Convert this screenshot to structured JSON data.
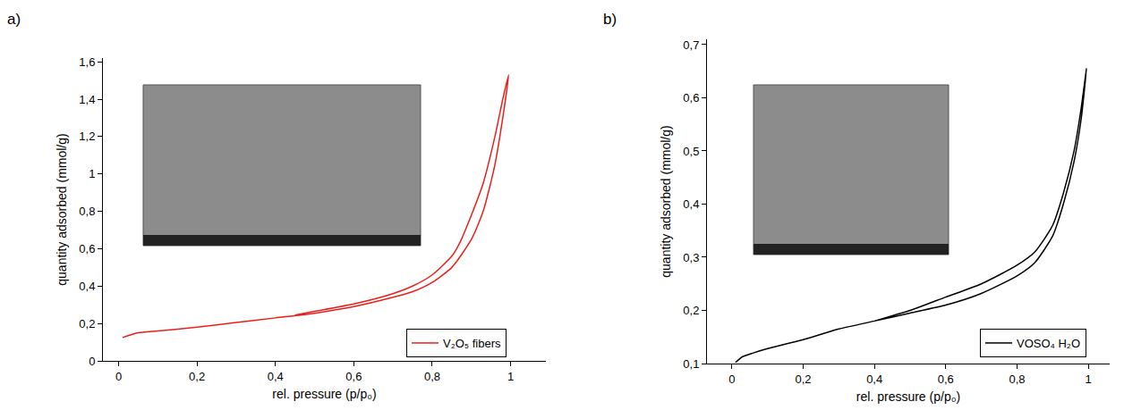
{
  "chart_data": [
    {
      "type": "line",
      "annotation": "a)",
      "x_label": "rel. pressure (p/p₀)",
      "y_label": "quantity adsorbed (mmol/g)",
      "x": [
        0.01,
        0.05,
        0.1,
        0.2,
        0.3,
        0.4,
        0.5,
        0.6,
        0.7,
        0.75,
        0.8,
        0.85,
        0.9,
        0.93,
        0.96,
        0.98,
        0.995,
        0.98,
        0.96,
        0.93,
        0.9,
        0.87,
        0.85,
        0.8,
        0.75,
        0.7,
        0.6,
        0.5,
        0.45
      ],
      "series": [
        {
          "name": "V₂O₅ fibers",
          "color": "#e8201c",
          "values": [
            0.125,
            0.15,
            0.16,
            0.18,
            0.205,
            0.23,
            0.255,
            0.29,
            0.34,
            0.37,
            0.42,
            0.5,
            0.65,
            0.8,
            1.05,
            1.3,
            1.53,
            1.4,
            1.2,
            0.95,
            0.78,
            0.63,
            0.56,
            0.46,
            0.4,
            0.36,
            0.305,
            0.265,
            0.245
          ]
        }
      ],
      "xlim": [
        -0.04,
        1.09
      ],
      "xticks": [
        0,
        {
          "value": 0.2,
          "label": "0,2"
        },
        {
          "value": 0.4,
          "label": "0,4"
        },
        {
          "value": 0.6,
          "label": "0,6"
        },
        {
          "value": 0.8,
          "label": "0,8"
        },
        1
      ],
      "ylim": [
        0,
        1.62
      ],
      "yticks": [
        0,
        {
          "value": 0.2,
          "label": "0,2"
        },
        {
          "value": 0.4,
          "label": "0,4"
        },
        {
          "value": 0.6,
          "label": "0,6"
        },
        {
          "value": 0.8,
          "label": "0,8"
        },
        1,
        {
          "value": 1.2,
          "label": "1,2"
        },
        {
          "value": 1.4,
          "label": "1,4"
        },
        {
          "value": 1.6,
          "label": "1,6"
        }
      ],
      "grid": false,
      "legend": "lower right"
    },
    {
      "type": "line",
      "annotation": "b)",
      "x_label": "rel. pressure (p/p₀)",
      "y_label": "quantity adsorbed (mmol/g)",
      "x": [
        0.01,
        0.03,
        0.06,
        0.1,
        0.2,
        0.3,
        0.4,
        0.5,
        0.6,
        0.7,
        0.8,
        0.85,
        0.9,
        0.93,
        0.96,
        0.98,
        0.995,
        0.98,
        0.96,
        0.93,
        0.9,
        0.85,
        0.8,
        0.7,
        0.6,
        0.5,
        0.45,
        0.4
      ],
      "series": [
        {
          "name": "VOSO₄ H₂O",
          "color": "#000000",
          "values": [
            0.102,
            0.113,
            0.12,
            0.128,
            0.145,
            0.165,
            0.18,
            0.195,
            0.21,
            0.232,
            0.265,
            0.29,
            0.34,
            0.4,
            0.48,
            0.56,
            0.655,
            0.58,
            0.5,
            0.42,
            0.36,
            0.31,
            0.285,
            0.25,
            0.225,
            0.2,
            0.19,
            0.18
          ]
        }
      ],
      "xlim": [
        -0.07,
        1.06
      ],
      "xticks": [
        0,
        {
          "value": 0.2,
          "label": "0,2"
        },
        {
          "value": 0.4,
          "label": "0,4"
        },
        {
          "value": 0.6,
          "label": "0,6"
        },
        {
          "value": 0.8,
          "label": "0,8"
        },
        1
      ],
      "ylim": [
        0.1,
        0.71
      ],
      "yticks": [
        {
          "value": 0.1,
          "label": "0,1"
        },
        {
          "value": 0.2,
          "label": "0,2"
        },
        {
          "value": 0.3,
          "label": "0,3"
        },
        {
          "value": 0.4,
          "label": "0,4"
        },
        {
          "value": 0.5,
          "label": "0,5"
        },
        {
          "value": 0.6,
          "label": "0,6"
        },
        {
          "value": 0.7,
          "label": "0,7"
        }
      ],
      "grid": false,
      "legend": "lower right"
    }
  ]
}
